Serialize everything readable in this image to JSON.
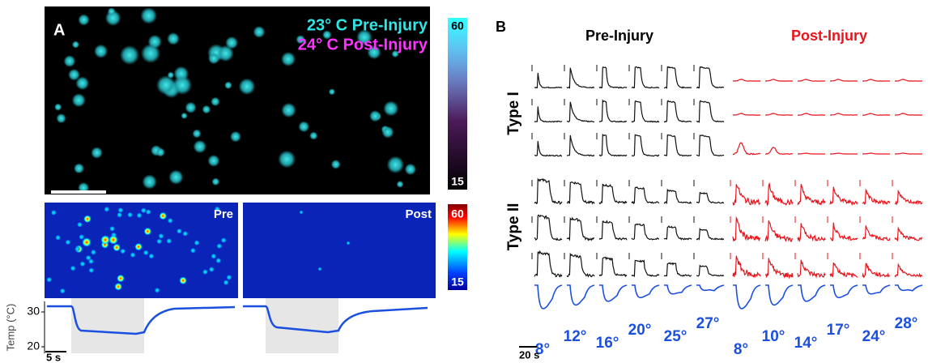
{
  "panel_a": {
    "label": "A",
    "legend": [
      "23° C Pre-Injury",
      "24° C Post-Injury"
    ],
    "colorbar": {
      "max": 60,
      "min": 15
    },
    "heatmap_titles": [
      "Pre",
      "Post"
    ],
    "heatmap_colorbar": {
      "max": 60,
      "min": 15
    },
    "temp_axis": {
      "label": "Temp (°C)",
      "ticks": [
        30,
        20
      ],
      "scale": "5 s"
    }
  },
  "panel_b": {
    "label": "B",
    "columns": [
      "Pre-Injury",
      "Post-Injury"
    ],
    "rows": [
      "Type I",
      "Type II"
    ],
    "pre_temps": [
      "8°",
      "12°",
      "16°",
      "20°",
      "25°",
      "27°"
    ],
    "post_temps": [
      "8°",
      "10°",
      "14°",
      "17°",
      "24°",
      "28°"
    ],
    "scale": "20 s"
  }
}
